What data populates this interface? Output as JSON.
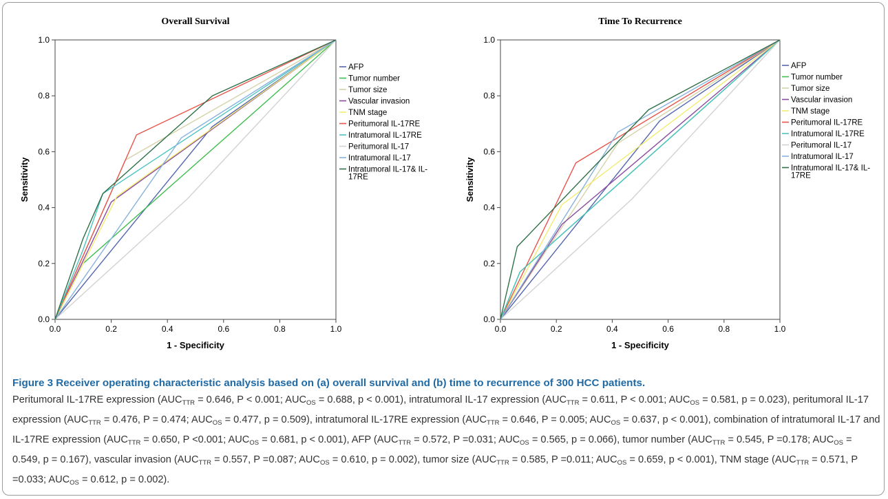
{
  "colors": {
    "AFP": "#5566b0",
    "Tumor number": "#3fbe4f",
    "Tumor size": "#d6d2a8",
    "Vascular invasion": "#8a4aa0",
    "TNM stage": "#f2ec70",
    "Peritumoral IL-17RE": "#e8534a",
    "Intratumoral IL-17RE": "#4cc3c3",
    "Peritumoral IL-17": "#d2d2d2",
    "Intratumoral IL-17": "#86b2dc",
    "Intratumoral IL-17& IL-17RE": "#2e7048"
  },
  "chart_data": [
    {
      "type": "line",
      "title": "Overall Survival",
      "xlabel": "1 - Specificity",
      "ylabel": "Sensitivity",
      "xlim": [
        0,
        1
      ],
      "ylim": [
        0,
        1
      ],
      "xticks": [
        "0.0",
        "0.2",
        "0.4",
        "0.6",
        "0.8",
        "1.0"
      ],
      "yticks": [
        "0.0",
        "0.2",
        "0.4",
        "0.6",
        "0.8",
        "1.0"
      ],
      "legend_position": "right",
      "reference_line": true,
      "series": [
        {
          "name": "AFP",
          "x": [
            0,
            0.56,
            1
          ],
          "y": [
            0,
            0.69,
            1
          ]
        },
        {
          "name": "Tumor number",
          "x": [
            0,
            0.1,
            1
          ],
          "y": [
            0,
            0.2,
            1
          ]
        },
        {
          "name": "Tumor size",
          "x": [
            0,
            0.25,
            1
          ],
          "y": [
            0,
            0.57,
            1
          ]
        },
        {
          "name": "Vascular invasion",
          "x": [
            0,
            0.2,
            1
          ],
          "y": [
            0,
            0.42,
            1
          ]
        },
        {
          "name": "TNM stage",
          "x": [
            0,
            0.22,
            1
          ],
          "y": [
            0,
            0.44,
            1
          ]
        },
        {
          "name": "Peritumoral IL-17RE",
          "x": [
            0,
            0.29,
            1
          ],
          "y": [
            0,
            0.66,
            1
          ]
        },
        {
          "name": "Intratumoral IL-17RE",
          "x": [
            0,
            0.1,
            0.17,
            1
          ],
          "y": [
            0,
            0.25,
            0.45,
            1
          ]
        },
        {
          "name": "Peritumoral IL-17",
          "x": [
            0,
            0.47,
            1
          ],
          "y": [
            0,
            0.43,
            1
          ]
        },
        {
          "name": "Intratumoral IL-17",
          "x": [
            0,
            0.45,
            1
          ],
          "y": [
            0,
            0.65,
            1
          ]
        },
        {
          "name": "Intratumoral IL-17& IL-17RE",
          "x": [
            0,
            0.1,
            0.17,
            0.56,
            1
          ],
          "y": [
            0,
            0.29,
            0.45,
            0.8,
            1
          ]
        }
      ]
    },
    {
      "type": "line",
      "title": "Time To Recurrence",
      "xlabel": "1 - Specificity",
      "ylabel": "Sensitivity",
      "xlim": [
        0,
        1
      ],
      "ylim": [
        0,
        1
      ],
      "xticks": [
        "0.0",
        "0.2",
        "0.4",
        "0.6",
        "0.8",
        "1.0"
      ],
      "yticks": [
        "0.0",
        "0.2",
        "0.4",
        "0.6",
        "0.8",
        "1.0"
      ],
      "legend_position": "right",
      "reference_line": true,
      "series": [
        {
          "name": "AFP",
          "x": [
            0,
            0.57,
            1
          ],
          "y": [
            0,
            0.71,
            1
          ]
        },
        {
          "name": "Tumor number",
          "x": [
            0,
            0.07,
            1
          ],
          "y": [
            0,
            0.17,
            1
          ]
        },
        {
          "name": "Tumor size",
          "x": [
            0,
            0.42,
            1
          ],
          "y": [
            0,
            0.63,
            1
          ]
        },
        {
          "name": "Vascular invasion",
          "x": [
            0,
            0.22,
            1
          ],
          "y": [
            0,
            0.34,
            1
          ]
        },
        {
          "name": "TNM stage",
          "x": [
            0,
            0.22,
            1
          ],
          "y": [
            0,
            0.41,
            1
          ]
        },
        {
          "name": "Peritumoral IL-17RE",
          "x": [
            0,
            0.27,
            1
          ],
          "y": [
            0,
            0.56,
            1
          ]
        },
        {
          "name": "Intratumoral IL-17RE",
          "x": [
            0,
            0.07,
            1
          ],
          "y": [
            0,
            0.17,
            1
          ]
        },
        {
          "name": "Peritumoral IL-17",
          "x": [
            0,
            0.47,
            1
          ],
          "y": [
            0,
            0.43,
            1
          ]
        },
        {
          "name": "Intratumoral IL-17",
          "x": [
            0,
            0.42,
            1
          ],
          "y": [
            0,
            0.67,
            1
          ]
        },
        {
          "name": "Intratumoral IL-17& IL-17RE",
          "x": [
            0,
            0.06,
            0.53,
            1
          ],
          "y": [
            0,
            0.26,
            0.75,
            1
          ]
        }
      ]
    }
  ],
  "caption": {
    "title": "Figure 3 Receiver operating characteristic analysis based on (a) overall survival and (b) time to recurrence of 300 HCC patients.",
    "body": [
      {
        "t": "Peritumoral IL-17RE expression (AUC"
      },
      {
        "s": "TTR"
      },
      {
        "t": " = 0.646, P < 0.001; AUC"
      },
      {
        "s": "OS"
      },
      {
        "t": " = 0.688, p < 0.001), intratumoral IL-17 expression (AUC"
      },
      {
        "s": "TTR"
      },
      {
        "t": " = 0.611, P < 0.001; AUC"
      },
      {
        "s": "OS"
      },
      {
        "t": " = 0.581, p = 0.023), peritumoral IL-17 expression (AUC"
      },
      {
        "s": "TTR"
      },
      {
        "t": " = 0.476, P = 0.474; AUC"
      },
      {
        "s": "OS"
      },
      {
        "t": " = 0.477, p = 0.509), intratumoral IL-17RE expression (AUC"
      },
      {
        "s": "TTR"
      },
      {
        "t": " = 0.646, P = 0.005; AUC"
      },
      {
        "s": "OS"
      },
      {
        "t": " = 0.637, p < 0.001), combination of intratumoral IL-17 and IL-17RE expression (AUC"
      },
      {
        "s": "TTR"
      },
      {
        "t": " = 0.650, P <0.001; AUC"
      },
      {
        "s": "OS"
      },
      {
        "t": " = 0.681, p < 0.001), AFP (AUC"
      },
      {
        "s": "TTR"
      },
      {
        "t": " = 0.572, P =0.031; AUC"
      },
      {
        "s": "OS"
      },
      {
        "t": " = 0.565, p = 0.066), tumor number (AUC"
      },
      {
        "s": "TTR"
      },
      {
        "t": " = 0.545, P =0.178; AUC"
      },
      {
        "s": "OS"
      },
      {
        "t": " = 0.549, p = 0.167), vascular invasion (AUC"
      },
      {
        "s": "TTR"
      },
      {
        "t": " = 0.557, P =0.087; AUC"
      },
      {
        "s": "OS"
      },
      {
        "t": " = 0.610, p = 0.002), tumor size (AUC"
      },
      {
        "s": "TTR"
      },
      {
        "t": " = 0.585, P =0.011; AUC"
      },
      {
        "s": "OS"
      },
      {
        "t": " = 0.659, p < 0.001), TNM stage (AUC"
      },
      {
        "s": "TTR"
      },
      {
        "t": " = 0.571, P =0.033; AUC"
      },
      {
        "s": "OS"
      },
      {
        "t": " = 0.612, p = 0.002)."
      }
    ]
  }
}
